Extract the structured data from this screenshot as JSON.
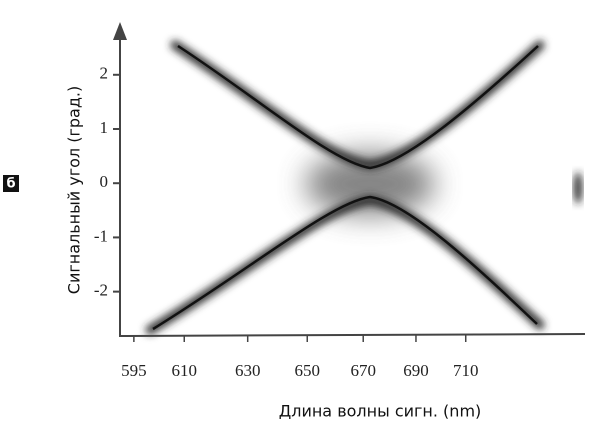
{
  "chart_data": {
    "type": "image",
    "panel_label": "б",
    "x_label": "Длина волны сигн. (nm)",
    "y_label": "Сигнальный угол (град.)",
    "xscale": "reciprocal",
    "xlim": [
      591,
      763
    ],
    "xticks": [
      595,
      610,
      630,
      650,
      670,
      690,
      710
    ],
    "ylim": [
      -2.8,
      2.9
    ],
    "yticks": [
      -2,
      -1,
      0,
      1,
      2
    ]
  }
}
